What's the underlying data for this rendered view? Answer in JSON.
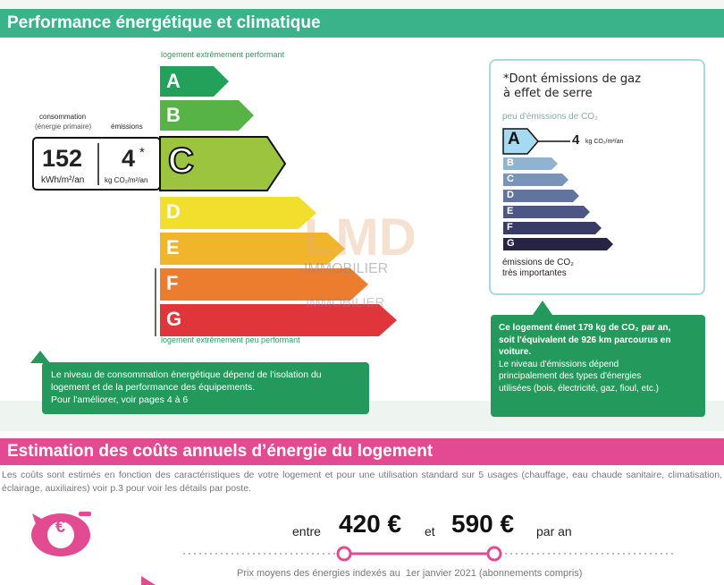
{
  "energy": {
    "title": "Performance énergétique et climatique",
    "top_label": "logement extrêmement performant",
    "bottom_label": "logement extrêmement peu performant",
    "consumption_label": "consommation",
    "consumption_sub": "(énergie primaire)",
    "emissions_label": "émissions",
    "consumption_value": "152",
    "consumption_unit": "kWh/m²/an",
    "emissions_value": "4",
    "emissions_star": "*",
    "emissions_unit": "kg CO₂/m²/an",
    "classes": [
      "A",
      "B",
      "C",
      "D",
      "E",
      "F",
      "G"
    ],
    "current_class": "C",
    "colors": [
      "#23a05a",
      "#58b347",
      "#9cc43f",
      "#f2df2d",
      "#f1b52c",
      "#ec7d2e",
      "#e0353a"
    ],
    "tip": [
      "Le niveau de consommation énergétique dépend de l'isolation du",
      "logement et de la performance des équipements.",
      "Pour l'améliorer, voir pages 4 à 6"
    ]
  },
  "ghg": {
    "note_line1": "*Dont émissions de gaz",
    "note_line2": "à effet de serre",
    "top_label": "peu d'émissions de CO₂",
    "bottom_label1": "émissions de CO₂",
    "bottom_label2": "très importantes",
    "classes": [
      "A",
      "B",
      "C",
      "D",
      "E",
      "F",
      "G"
    ],
    "current_class": "A",
    "value": "4",
    "value_unit": "kg CO₂/m²/an",
    "colors": [
      "#a6d9f2",
      "#8fb4d2",
      "#7a93bb",
      "#63739f",
      "#4d5685",
      "#393b67",
      "#262345"
    ],
    "tip_bold": [
      "Ce logement émet 179 kg de CO₂ par an,",
      "soit l'équivalent de 926 km parcourus en",
      "voiture."
    ],
    "tip_normal": [
      "Le niveau d'émissions dépend",
      "principalement des types d'énergies",
      "utilisées (bois, électricité, gaz, fioul, etc.)"
    ]
  },
  "watermark": {
    "logo": "LMD",
    "line1": "IMMOBILIER",
    "line2": "IMMOBILIER"
  },
  "costs": {
    "title": "Estimation des coûts annuels d’énergie du logement",
    "description": "Les coûts sont estimés en fonction des caractéristiques de votre logement et pour une utilisation standard sur 5 usages (chauffage, eau chaude sanitaire, climatisation, éclairage, auxiliaires) voir p.3 pour voir les détails par poste.",
    "word_between": "entre",
    "low": "420 €",
    "word_and": "et",
    "high": "590 €",
    "per_year": "par an",
    "footnote": "Prix moyens des énergies indexés au  1er janvier 2021 (abonnements compris)",
    "euro_symbol": "€",
    "accent": "#e24b92"
  }
}
